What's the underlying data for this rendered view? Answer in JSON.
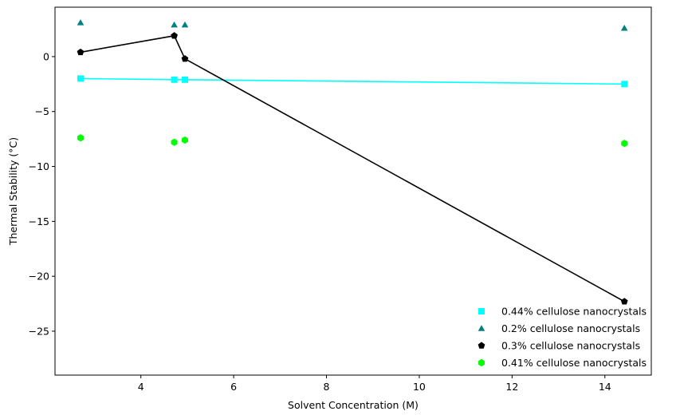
{
  "chart_data": {
    "type": "scatter",
    "title": "",
    "xlabel": "Solvent Concentration (M)",
    "ylabel": "Thermal Stability (°C)",
    "xlim": [
      2.15,
      15.0
    ],
    "ylim": [
      -29.0,
      4.5
    ],
    "xticks": [
      4,
      6,
      8,
      10,
      12,
      14
    ],
    "yticks": [
      0,
      -5,
      -10,
      -15,
      -20,
      -25
    ],
    "xtick_labels": [
      "4",
      "6",
      "8",
      "10",
      "12",
      "14"
    ],
    "ytick_labels": [
      "0",
      "−5",
      "−10",
      "−15",
      "−20",
      "−25"
    ],
    "grid": false,
    "legend_position": "bottom-right",
    "series": [
      {
        "name": "0.44% cellulose nanocrystals",
        "marker": "square",
        "color": "#00ffff",
        "line": true,
        "x": [
          2.7,
          4.72,
          4.95,
          14.42
        ],
        "y": [
          -2.0,
          -2.1,
          -2.1,
          -2.5
        ]
      },
      {
        "name": "0.2% cellulose nanocrystals",
        "marker": "triangle",
        "color": "#008080",
        "line": false,
        "x": [
          2.7,
          4.72,
          4.95,
          14.42
        ],
        "y": [
          3.1,
          2.9,
          2.9,
          2.6
        ]
      },
      {
        "name": "0.3% cellulose nanocrystals",
        "marker": "pentagon",
        "color": "#000000",
        "line": true,
        "x": [
          2.7,
          4.72,
          4.95,
          14.42
        ],
        "y": [
          0.4,
          1.9,
          -0.2,
          -22.3
        ]
      },
      {
        "name": "0.41% cellulose nanocrystals",
        "marker": "hexagon",
        "color": "#00ff00",
        "line": false,
        "x": [
          2.7,
          4.72,
          4.95,
          14.42
        ],
        "y": [
          -7.4,
          -7.8,
          -7.6,
          -7.9
        ]
      }
    ]
  }
}
